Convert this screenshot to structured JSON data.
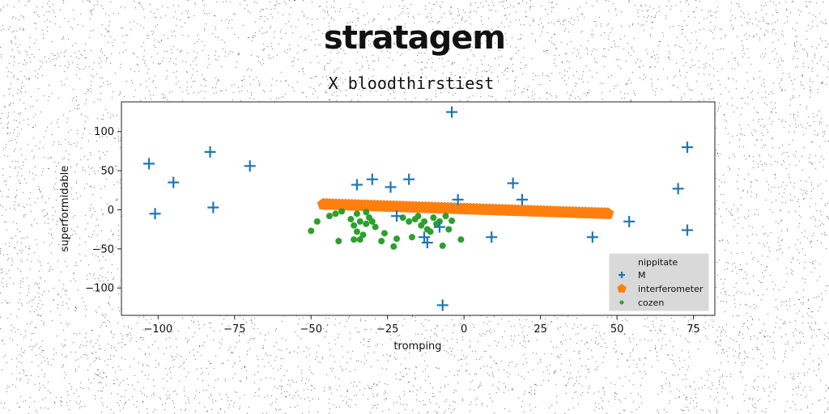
{
  "header": {
    "title": "stratagem"
  },
  "chart_data": {
    "type": "scatter",
    "title": "stratagem",
    "subtitle": "X bloodthirstiest",
    "xlabel": "tromping",
    "ylabel": "superformidable",
    "xlim": [
      -112,
      82
    ],
    "ylim": [
      -135,
      138
    ],
    "xticks": [
      {
        "value": -100,
        "label": "−100"
      },
      {
        "value": -75,
        "label": "−75"
      },
      {
        "value": -50,
        "label": "−50"
      },
      {
        "value": -25,
        "label": "−25"
      },
      {
        "value": 0,
        "label": "0"
      },
      {
        "value": 25,
        "label": "25"
      },
      {
        "value": 50,
        "label": "50"
      },
      {
        "value": 75,
        "label": "75"
      }
    ],
    "yticks": [
      {
        "value": 100,
        "label": "100"
      },
      {
        "value": 50,
        "label": "50"
      },
      {
        "value": 0,
        "label": "0"
      },
      {
        "value": -50,
        "label": "−50"
      },
      {
        "value": -100,
        "label": "−100"
      }
    ],
    "grid": false,
    "background": "speckled noise",
    "legend": {
      "title": "nippitate",
      "placement": "lower-right"
    },
    "series": [
      {
        "name": "M",
        "marker": "plus",
        "color": "#1f77b4",
        "points": [
          [
            -103,
            59
          ],
          [
            -101,
            -5
          ],
          [
            -95,
            35
          ],
          [
            -83,
            74
          ],
          [
            -82,
            3
          ],
          [
            -70,
            56
          ],
          [
            -35,
            32
          ],
          [
            -30,
            39
          ],
          [
            -24,
            29
          ],
          [
            -18,
            39
          ],
          [
            -22,
            -8
          ],
          [
            -13,
            -35
          ],
          [
            -12,
            -42
          ],
          [
            -8,
            -22
          ],
          [
            -7,
            -122
          ],
          [
            -4,
            125
          ],
          [
            -2,
            13
          ],
          [
            9,
            -35
          ],
          [
            16,
            34
          ],
          [
            19,
            13
          ],
          [
            42,
            -35
          ],
          [
            54,
            -15
          ],
          [
            70,
            27
          ],
          [
            73,
            80
          ],
          [
            73,
            -26
          ]
        ]
      },
      {
        "name": "interferometer",
        "marker": "pentagon",
        "color": "#ff7f0e",
        "line": {
          "x_start": -46,
          "y_start": 7,
          "x_end": 47,
          "y_end": -5,
          "count": 90
        }
      },
      {
        "name": "cozen",
        "marker": "circle",
        "color": "#2ca02c",
        "points": [
          [
            -50,
            -27
          ],
          [
            -44,
            -8
          ],
          [
            -42,
            -5
          ],
          [
            -41,
            -40
          ],
          [
            -40,
            -2
          ],
          [
            -37,
            -12
          ],
          [
            -36,
            -38
          ],
          [
            -36,
            -20
          ],
          [
            -35,
            -28
          ],
          [
            -35,
            -5
          ],
          [
            -34,
            -38
          ],
          [
            -34,
            -15
          ],
          [
            -33,
            -32
          ],
          [
            -32,
            -18
          ],
          [
            -32,
            -3
          ],
          [
            -31,
            -10
          ],
          [
            -30,
            -15
          ],
          [
            -29,
            -22
          ],
          [
            -27,
            -40
          ],
          [
            -26,
            -30
          ],
          [
            -23,
            -47
          ],
          [
            -22,
            -37
          ],
          [
            -20,
            -10
          ],
          [
            -18,
            -15
          ],
          [
            -17,
            -35
          ],
          [
            -16,
            -12
          ],
          [
            -15,
            -8
          ],
          [
            -14,
            -20
          ],
          [
            -13,
            -15
          ],
          [
            -12,
            -25
          ],
          [
            -11,
            -28
          ],
          [
            -10,
            -10
          ],
          [
            -9,
            -18
          ],
          [
            -8,
            -15
          ],
          [
            -7,
            -46
          ],
          [
            -6,
            -8
          ],
          [
            -5,
            -25
          ],
          [
            -4,
            -14
          ],
          [
            -1,
            -38
          ],
          [
            -48,
            -15
          ]
        ]
      }
    ]
  }
}
